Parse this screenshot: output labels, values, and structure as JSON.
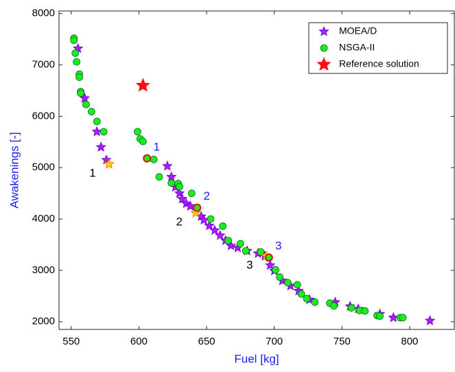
{
  "chart_data": {
    "type": "scatter",
    "x_label": "Fuel [kg]",
    "y_label": "Awakenings [-]",
    "axis_label_color": "#1a1aff",
    "xlim": [
      541,
      833
    ],
    "ylim": [
      1850,
      8050
    ],
    "xticks": [
      550,
      600,
      650,
      700,
      750,
      800
    ],
    "yticks": [
      2000,
      3000,
      4000,
      5000,
      6000,
      7000,
      8000
    ],
    "legend": "upper right",
    "series": [
      {
        "name": "MOEA/D",
        "color": "#b01aff",
        "edge": "#5a00c8",
        "marker": "star",
        "x": [
          555,
          560,
          569,
          572,
          576,
          621,
          624,
          627,
          630,
          632,
          635,
          638,
          646,
          648,
          652,
          656,
          660,
          664,
          668,
          673,
          680,
          688,
          693,
          697,
          700,
          706,
          712,
          718,
          726,
          745,
          756,
          762,
          778,
          788,
          815
        ],
        "values": [
          7320,
          6350,
          5700,
          5400,
          5150,
          5030,
          4820,
          4620,
          4500,
          4390,
          4300,
          4250,
          4050,
          3980,
          3870,
          3780,
          3680,
          3580,
          3480,
          3440,
          3380,
          3330,
          3280,
          3100,
          2990,
          2800,
          2700,
          2600,
          2430,
          2380,
          2300,
          2250,
          2150,
          2080,
          2020
        ]
      },
      {
        "name": "NSGA-II",
        "color": "#1aee1a",
        "edge": "#0a6a30",
        "marker": "circle",
        "x": [
          552,
          552,
          553,
          554,
          556,
          556,
          557,
          557,
          561,
          565,
          569,
          574,
          599,
          601,
          603,
          611,
          615,
          624,
          629,
          630,
          639,
          653,
          662,
          666,
          675,
          679,
          690,
          701,
          704,
          710,
          717,
          720,
          724,
          730,
          741,
          744,
          757,
          763,
          767,
          776,
          778,
          793,
          795
        ],
        "values": [
          7520,
          7480,
          7230,
          7060,
          6820,
          6760,
          6480,
          6450,
          6230,
          6090,
          5900,
          5700,
          5700,
          5560,
          5510,
          5160,
          4820,
          4700,
          4690,
          4630,
          4500,
          4000,
          3860,
          3580,
          3520,
          3380,
          3360,
          3010,
          2870,
          2760,
          2720,
          2540,
          2450,
          2380,
          2360,
          2310,
          2270,
          2220,
          2210,
          2120,
          2110,
          2080,
          2080
        ]
      },
      {
        "name": "Reference solution",
        "color": "#ff1010",
        "edge": "#ff1010",
        "marker": "big-star",
        "x": [
          603
        ],
        "values": [
          6600
        ]
      }
    ],
    "highlights": [
      {
        "label": "1",
        "x": 578,
        "y": 5070,
        "marker": "star",
        "fill": "#ffd21a",
        "edge": "#ff7a00",
        "color": "#000000"
      },
      {
        "label": "2",
        "x": 642,
        "y": 4120,
        "marker": "star",
        "fill": "#ffd21a",
        "edge": "#ff7a00",
        "color": "#000000"
      },
      {
        "label": "3",
        "x": 694,
        "y": 3280,
        "marker": "star",
        "fill": "#ffd21a",
        "edge": "#ff7a00",
        "color": "#000000"
      },
      {
        "label": "1",
        "x": 606,
        "y": 5180,
        "marker": "circle",
        "fill": "#1aee1a",
        "edge": "#e01010",
        "color": "#1a1aff"
      },
      {
        "label": "2",
        "x": 643,
        "y": 4220,
        "marker": "circle",
        "fill": "#1aee1a",
        "edge": "#e01010",
        "color": "#1a1aff"
      },
      {
        "label": "3",
        "x": 696,
        "y": 3250,
        "marker": "circle",
        "fill": "#1aee1a",
        "edge": "#e01010",
        "color": "#1a1aff"
      }
    ]
  }
}
